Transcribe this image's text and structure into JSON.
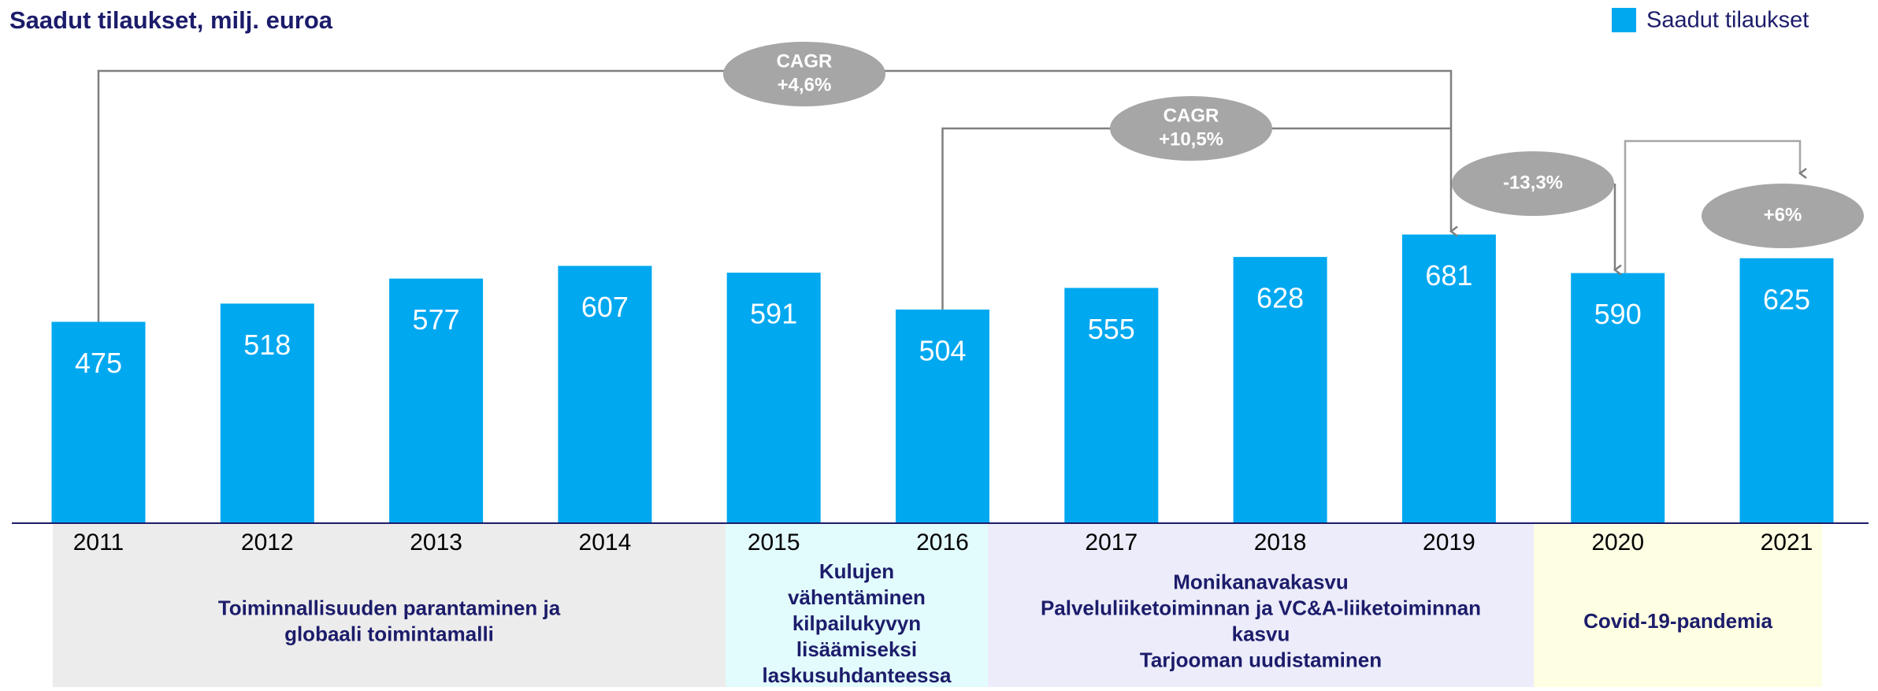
{
  "chart_data": {
    "type": "bar",
    "title": "Saadut tilaukset, milj. euroa",
    "categories": [
      "2011",
      "2012",
      "2013",
      "2014",
      "2015",
      "2016",
      "2017",
      "2018",
      "2019",
      "2020",
      "2021"
    ],
    "series": [
      {
        "name": "Saadut tilaukset",
        "color": "#00a8f0",
        "values": [
          475,
          518,
          577,
          607,
          591,
          504,
          555,
          628,
          681,
          590,
          625
        ]
      }
    ],
    "legend": "top-right",
    "annotations": [
      {
        "lines": [
          "CAGR",
          "+4,6%"
        ]
      },
      {
        "lines": [
          "CAGR",
          "+10,5%"
        ]
      },
      {
        "lines": [
          "-13,3%"
        ]
      },
      {
        "lines": [
          "+6%"
        ]
      }
    ],
    "periods": [
      {
        "lines": [
          "Toiminnallisuuden parantaminen ja",
          "globaali toimintamalli"
        ],
        "color": "#ececec"
      },
      {
        "lines": [
          "Kulujen",
          "vähentäminen",
          "kilpailukyvyn",
          "lisäämiseksi",
          "laskusuhdanteessa"
        ],
        "color": "#e2fbfc"
      },
      {
        "lines": [
          "Monikanavakasvu",
          "Palveluliiketoiminnan ja VC&A-liiketoiminnan",
          "kasvu",
          "Tarjooman uudistaminen"
        ],
        "color": "#ececfa"
      },
      {
        "lines": [
          "Covid-19-pandemia"
        ],
        "color": "#fefee2"
      }
    ]
  }
}
